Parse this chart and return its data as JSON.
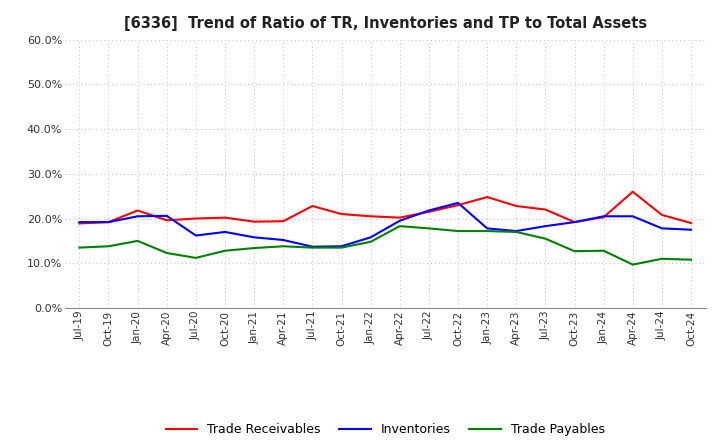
{
  "title": "[6336]  Trend of Ratio of TR, Inventories and TP to Total Assets",
  "x_labels": [
    "Jul-19",
    "Oct-19",
    "Jan-20",
    "Apr-20",
    "Jul-20",
    "Oct-20",
    "Jan-21",
    "Apr-21",
    "Jul-21",
    "Oct-21",
    "Jan-22",
    "Apr-22",
    "Jul-22",
    "Oct-22",
    "Jan-23",
    "Apr-23",
    "Jul-23",
    "Oct-23",
    "Jan-24",
    "Apr-24",
    "Jul-24",
    "Oct-24"
  ],
  "trade_receivables": [
    0.189,
    0.192,
    0.218,
    0.196,
    0.2,
    0.202,
    0.193,
    0.194,
    0.228,
    0.21,
    0.205,
    0.202,
    0.215,
    0.23,
    0.248,
    0.228,
    0.22,
    0.192,
    0.203,
    0.26,
    0.208,
    0.19
  ],
  "inventories": [
    0.192,
    0.192,
    0.205,
    0.206,
    0.162,
    0.17,
    0.158,
    0.152,
    0.137,
    0.138,
    0.158,
    0.195,
    0.218,
    0.235,
    0.178,
    0.172,
    0.183,
    0.192,
    0.205,
    0.205,
    0.178,
    0.175
  ],
  "trade_payables": [
    0.135,
    0.138,
    0.15,
    0.123,
    0.112,
    0.128,
    0.134,
    0.138,
    0.135,
    0.135,
    0.148,
    0.183,
    0.178,
    0.172,
    0.172,
    0.17,
    0.155,
    0.127,
    0.128,
    0.097,
    0.11,
    0.108
  ],
  "ylim": [
    0.0,
    0.6
  ],
  "yticks": [
    0.0,
    0.1,
    0.2,
    0.3,
    0.4,
    0.5,
    0.6
  ],
  "color_tr": "#FF0000",
  "color_inv": "#0000FF",
  "color_tp": "#008000",
  "legend_labels": [
    "Trade Receivables",
    "Inventories",
    "Trade Payables"
  ],
  "background_color": "#FFFFFF",
  "grid_color": "#BBBBBB"
}
